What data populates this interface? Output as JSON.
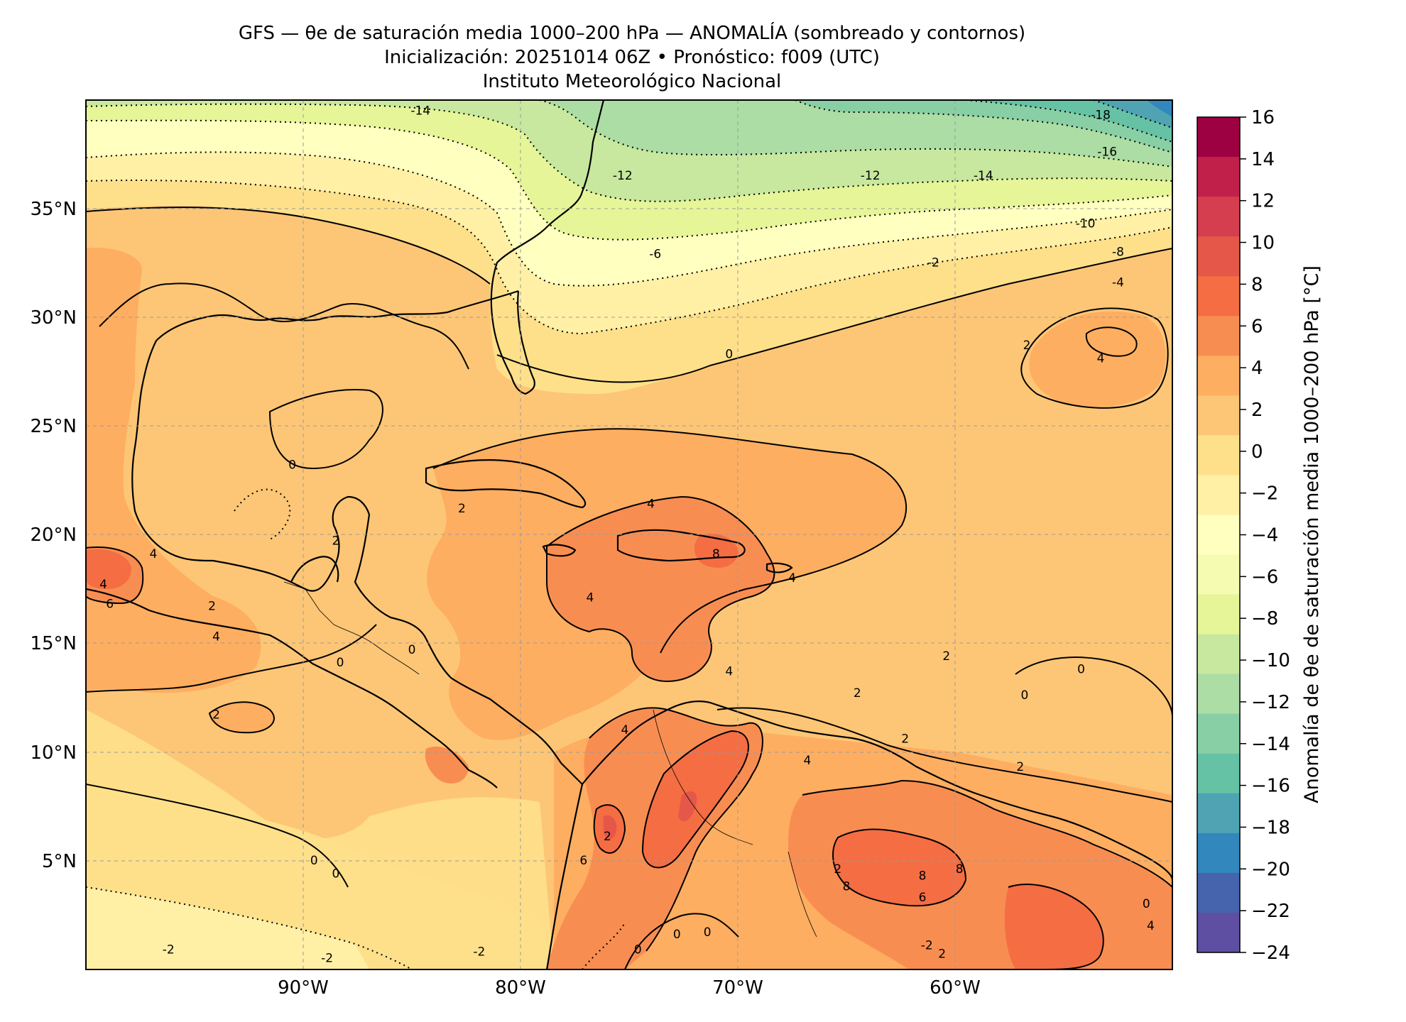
{
  "title": {
    "line1": "GFS — θe de saturación media 1000–200 hPa — ANOMALÍA (sombreado y contornos)",
    "line2": "Inicialización: 20251014 06Z   •   Pronóstico: f009 (UTC)",
    "line3": "Instituto Meteorológico Nacional"
  },
  "map": {
    "lon_range": [
      -100,
      -50
    ],
    "lat_range": [
      0,
      40
    ],
    "lon_ticks": [
      "90°W",
      "80°W",
      "70°W",
      "60°W"
    ],
    "lat_ticks": [
      "35°N",
      "30°N",
      "25°N",
      "20°N",
      "15°N",
      "10°N",
      "5°N"
    ],
    "region": "Caribe, Golfo de México, Centroamérica y norte de Sudamérica"
  },
  "colorbar": {
    "label": "Anomalía de θe de saturación media 1000–200 hPa [°C]",
    "ticks": [
      "16",
      "14",
      "12",
      "10",
      "8",
      "6",
      "4",
      "2",
      "0",
      "−2",
      "−4",
      "−6",
      "−8",
      "−10",
      "−12",
      "−14",
      "−16",
      "−18",
      "−20",
      "−22",
      "−24"
    ],
    "colors": [
      "#9e0142",
      "#c1204a",
      "#d53e4f",
      "#e45749",
      "#f46d43",
      "#f88d52",
      "#fdae61",
      "#fdc676",
      "#fee08b",
      "#fff0a6",
      "#ffffbf",
      "#f6fbb2",
      "#e6f598",
      "#c7e89e",
      "#abdda4",
      "#89cfa5",
      "#66c2a5",
      "#4fa3b3",
      "#3288bd",
      "#4564ad",
      "#5e4fa2"
    ]
  },
  "contour_labels": [
    {
      "t": "-14",
      "lon": -84.6,
      "lat": 39.5
    },
    {
      "t": "-12",
      "lon": -75.3,
      "lat": 36.5
    },
    {
      "t": "-12",
      "lon": -63.9,
      "lat": 36.5
    },
    {
      "t": "-14",
      "lon": -58.7,
      "lat": 36.5
    },
    {
      "t": "-18",
      "lon": -53.3,
      "lat": 39.3
    },
    {
      "t": "-16",
      "lon": -53.0,
      "lat": 37.6
    },
    {
      "t": "-10",
      "lon": -54.0,
      "lat": 34.3
    },
    {
      "t": "-8",
      "lon": -52.5,
      "lat": 33.0
    },
    {
      "t": "-2",
      "lon": -61.0,
      "lat": 32.5
    },
    {
      "t": "-4",
      "lon": -52.5,
      "lat": 31.6
    },
    {
      "t": "-6",
      "lon": -73.8,
      "lat": 32.9
    },
    {
      "t": "0",
      "lon": -70.4,
      "lat": 28.3
    },
    {
      "t": "2",
      "lon": -56.7,
      "lat": 28.7
    },
    {
      "t": "4",
      "lon": -53.3,
      "lat": 28.1
    },
    {
      "t": "0",
      "lon": -90.5,
      "lat": 23.2
    },
    {
      "t": "2",
      "lon": -88.5,
      "lat": 19.7
    },
    {
      "t": "2",
      "lon": -82.7,
      "lat": 21.2
    },
    {
      "t": "4",
      "lon": -74.0,
      "lat": 21.4
    },
    {
      "t": "8",
      "lon": -71.0,
      "lat": 19.1
    },
    {
      "t": "4",
      "lon": -67.5,
      "lat": 18.0
    },
    {
      "t": "4",
      "lon": -76.8,
      "lat": 17.1
    },
    {
      "t": "4",
      "lon": -96.9,
      "lat": 19.1
    },
    {
      "t": "4",
      "lon": -99.2,
      "lat": 17.7
    },
    {
      "t": "6",
      "lon": -98.9,
      "lat": 16.8
    },
    {
      "t": "2",
      "lon": -94.2,
      "lat": 16.7
    },
    {
      "t": "4",
      "lon": -94.0,
      "lat": 15.3
    },
    {
      "t": "0",
      "lon": -88.3,
      "lat": 14.1
    },
    {
      "t": "0",
      "lon": -85.0,
      "lat": 14.7
    },
    {
      "t": "2",
      "lon": -94.0,
      "lat": 11.7
    },
    {
      "t": "4",
      "lon": -70.4,
      "lat": 13.7
    },
    {
      "t": "2",
      "lon": -60.4,
      "lat": 14.4
    },
    {
      "t": "0",
      "lon": -56.8,
      "lat": 12.6
    },
    {
      "t": "0",
      "lon": -54.2,
      "lat": 13.8
    },
    {
      "t": "2",
      "lon": -64.5,
      "lat": 12.7
    },
    {
      "t": "4",
      "lon": -75.2,
      "lat": 11.0
    },
    {
      "t": "4",
      "lon": -66.8,
      "lat": 9.6
    },
    {
      "t": "2",
      "lon": -62.3,
      "lat": 10.6
    },
    {
      "t": "2",
      "lon": -57.0,
      "lat": 9.3
    },
    {
      "t": "0",
      "lon": -89.5,
      "lat": 5.0
    },
    {
      "t": "0",
      "lon": -88.5,
      "lat": 4.4
    },
    {
      "t": "2",
      "lon": -76.0,
      "lat": 6.1
    },
    {
      "t": "6",
      "lon": -77.1,
      "lat": 5.0
    },
    {
      "t": "2",
      "lon": -65.4,
      "lat": 4.6
    },
    {
      "t": "8",
      "lon": -65.0,
      "lat": 3.8
    },
    {
      "t": "8",
      "lon": -61.5,
      "lat": 4.3
    },
    {
      "t": "8",
      "lon": -59.8,
      "lat": 4.6
    },
    {
      "t": "6",
      "lon": -61.5,
      "lat": 3.3
    },
    {
      "t": "-2",
      "lon": -96.2,
      "lat": 0.9
    },
    {
      "t": "-2",
      "lon": -88.9,
      "lat": 0.5
    },
    {
      "t": "-2",
      "lon": -81.9,
      "lat": 0.8
    },
    {
      "t": "0",
      "lon": -74.6,
      "lat": 0.9
    },
    {
      "t": "0",
      "lon": -72.8,
      "lat": 1.6
    },
    {
      "t": "0",
      "lon": -71.4,
      "lat": 1.7
    },
    {
      "t": "2",
      "lon": -60.6,
      "lat": 0.7
    },
    {
      "t": "-2",
      "lon": -61.3,
      "lat": 1.1
    },
    {
      "t": "0",
      "lon": -51.2,
      "lat": 3.0
    },
    {
      "t": "4",
      "lon": -51.0,
      "lat": 2.0
    }
  ]
}
